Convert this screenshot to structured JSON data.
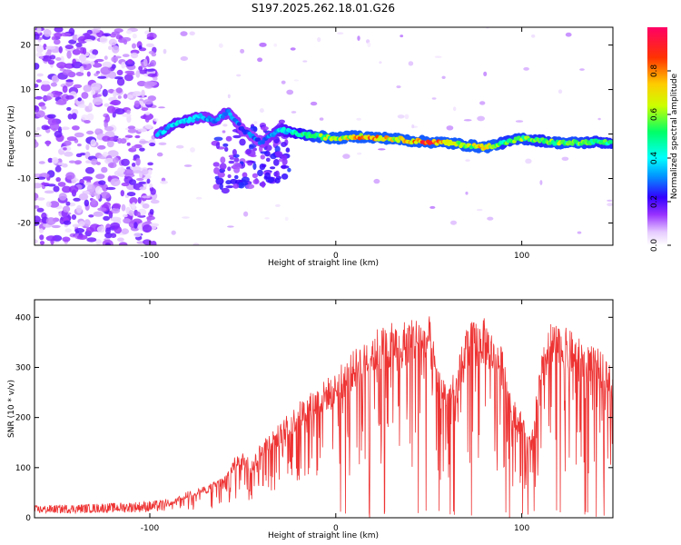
{
  "title": "S197.2025.262.18.01.G26",
  "chart_data": [
    {
      "type": "heatmap",
      "title": "S197.2025.262.18.01.G26",
      "xlabel": "Height of straight line (km)",
      "ylabel": "Frequency (Hz)",
      "xlim": [
        -162,
        149
      ],
      "ylim": [
        -25,
        24
      ],
      "x_ticks": [
        -100,
        0,
        100
      ],
      "x_tick_labels": [
        "-100",
        "0",
        "100"
      ],
      "y_ticks": [
        -20,
        -10,
        0,
        10,
        20
      ],
      "y_tick_labels": [
        "-20",
        "-10",
        "0",
        "10",
        "20"
      ],
      "colorbar": {
        "label": "Normalized spectral amplitude",
        "range": [
          0,
          1
        ],
        "ticks": [
          0,
          0.2,
          0.4,
          0.6,
          0.8
        ],
        "tick_labels": [
          "0.0",
          "0.2",
          "0.4",
          "0.6",
          "0.8"
        ],
        "colors": [
          "#ffffff",
          "#e6ccff",
          "#9933ff",
          "#3300ff",
          "#0099ff",
          "#00ffff",
          "#00ff66",
          "#ccff00",
          "#ffcc00",
          "#ff3300",
          "#ff0066"
        ]
      },
      "ridge_trace": {
        "description_x_km": [
          -95,
          -88,
          -80,
          -72,
          -65,
          -58,
          -50,
          -40,
          -30,
          -20,
          -10,
          0,
          10,
          20,
          30,
          40,
          50,
          60,
          70,
          80,
          90,
          100,
          110,
          120,
          130,
          140,
          148
        ],
        "frequency_hz": [
          0,
          2,
          3,
          4,
          3,
          5,
          1,
          -2,
          1,
          0,
          -0.5,
          -1,
          -0.5,
          -0.8,
          -1,
          -1.5,
          -1.8,
          -2,
          -2.5,
          -3,
          -2,
          -1,
          -1.5,
          -2,
          -2,
          -1.8,
          -2
        ],
        "amplitude": [
          0.35,
          0.4,
          0.4,
          0.35,
          0.35,
          0.35,
          0.3,
          0.3,
          0.4,
          0.5,
          0.6,
          0.65,
          0.75,
          0.85,
          0.7,
          0.8,
          0.9,
          0.75,
          0.6,
          0.8,
          0.55,
          0.6,
          0.55,
          0.6,
          0.6,
          0.55,
          0.55
        ]
      }
    },
    {
      "type": "line",
      "xlabel": "Height of straight line (km)",
      "ylabel": "SNR (10 * v/v)",
      "xlim": [
        -162,
        149
      ],
      "ylim": [
        0,
        435
      ],
      "x_ticks": [
        -100,
        0,
        100
      ],
      "x_tick_labels": [
        "-100",
        "0",
        "100"
      ],
      "y_ticks": [
        0,
        100,
        200,
        300,
        400
      ],
      "y_tick_labels": [
        "0",
        "100",
        "200",
        "300",
        "400"
      ],
      "series": [
        {
          "name": "SNR",
          "color": "#ee3333",
          "envelope_x": [
            -162,
            -140,
            -120,
            -100,
            -90,
            -80,
            -70,
            -60,
            -52,
            -45,
            -40,
            -30,
            -20,
            -10,
            0,
            10,
            20,
            30,
            40,
            50,
            55,
            60,
            65,
            70,
            80,
            90,
            95,
            100,
            105,
            110,
            115,
            125,
            135,
            149
          ],
          "envelope_y": [
            18,
            20,
            22,
            25,
            28,
            50,
            60,
            80,
            130,
            110,
            150,
            180,
            220,
            250,
            280,
            320,
            360,
            370,
            380,
            390,
            290,
            260,
            280,
            370,
            380,
            320,
            230,
            200,
            150,
            300,
            370,
            360,
            330,
            310
          ]
        }
      ]
    }
  ]
}
